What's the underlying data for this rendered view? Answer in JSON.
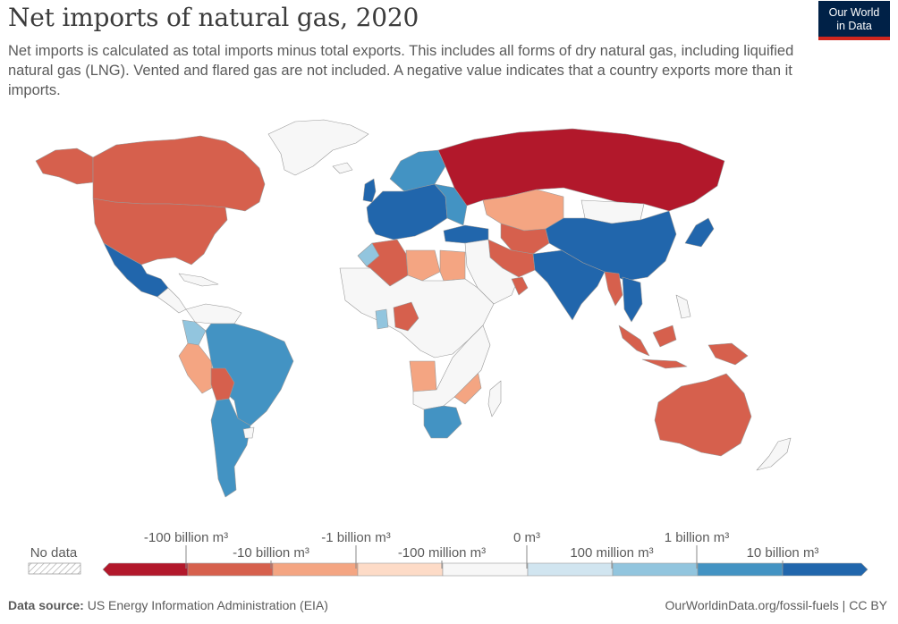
{
  "header": {
    "title": "Net imports of natural gas, 2020",
    "subtitle": "Net imports is calculated as total imports minus total exports. This includes all forms of dry natural gas, including liquified natural gas (LNG). Vented and flared gas are not included. A negative value indicates that a country exports more than it imports.",
    "logo_line1": "Our World",
    "logo_line2": "in Data"
  },
  "legend": {
    "no_data_label": "No data",
    "upper_labels": [
      "-100 billion m³",
      "-1 billion m³",
      "0 m³",
      "1 billion m³"
    ],
    "lower_labels": [
      "-10 billion m³",
      "-100 million m³",
      "100 million m³",
      "10 billion m³"
    ],
    "bins": [
      "#b2182b",
      "#d6604d",
      "#f4a582",
      "#fddbc7",
      "#f7f7f7",
      "#d1e5f0",
      "#92c5de",
      "#4393c3",
      "#2166ac"
    ]
  },
  "footer": {
    "source_label": "Data source:",
    "source_text": "US Energy Information Administration (EIA)",
    "url": "OurWorldinData.org/fossil-fuels | CC BY"
  },
  "colors": {
    "strong_export": "#b2182b",
    "export": "#d6604d",
    "moderate_export": "#f4a582",
    "neutral": "#f7f7f7",
    "light_import": "#92c5de",
    "import": "#4393c3",
    "strong_import": "#2166ac",
    "border": "#9a9a9a"
  }
}
